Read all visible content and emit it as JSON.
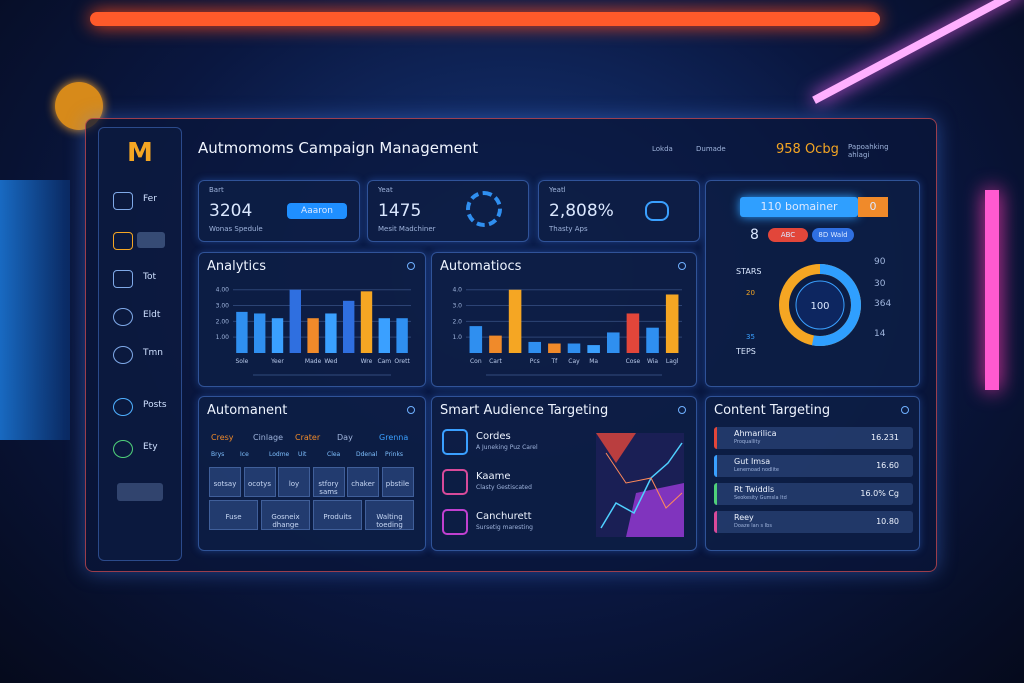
{
  "header": {
    "title": "Autmomoms Campaign Management",
    "user_items": [
      "Lokda",
      "Dumade"
    ],
    "counter": "958 Ocbg",
    "status": "Papoahking ahlagi"
  },
  "sidebar": {
    "logo": "M",
    "items": [
      "Fer",
      "Tot",
      "Eldt",
      "Tmn",
      "Posts",
      "Ety"
    ]
  },
  "stats": [
    {
      "label": "Bart",
      "value": "3204",
      "caption": "Wonas Spedule",
      "button": "Aaaron"
    },
    {
      "label": "Yeat",
      "value": "1475",
      "caption": "Mesit Madchiner"
    },
    {
      "label": "Yeatl",
      "value": "2,808%",
      "caption": "Thasty Aps"
    }
  ],
  "overview": {
    "banner": "110 bomainer",
    "badge": "0",
    "count": "8",
    "chips": [
      "ABC",
      "8D Wald"
    ],
    "center": "100",
    "left_labels": [
      "STARS",
      "TEPS"
    ],
    "left_numbers": [
      "20",
      "35"
    ],
    "right_numbers": [
      "90",
      "30",
      "364",
      "14"
    ]
  },
  "chart_data": [
    {
      "type": "bar",
      "title": "Analytics",
      "categories": [
        "Sole",
        null,
        "Yeer",
        null,
        "Made",
        "Wed",
        null,
        "Wre",
        "Cam",
        "Orett"
      ],
      "values": [
        2.6,
        2.5,
        2.2,
        4.0,
        2.2,
        2.5,
        3.3,
        3.9,
        2.2,
        2.2
      ],
      "colors": [
        "#2f8ff0",
        "#2f8ff0",
        "#3aa0ff",
        "#2f6fe0",
        "#f08a2a",
        "#3aa0ff",
        "#2f6fe0",
        "#f5a623",
        "#3aa0ff",
        "#2f8ff0"
      ],
      "ylim": [
        0,
        4.3
      ],
      "yticks": [
        {
          "value": 1,
          "label": "1.00"
        },
        {
          "value": 2,
          "label": "2.00"
        },
        {
          "value": 3,
          "label": "3.00"
        },
        {
          "value": 4,
          "label": "4.00"
        }
      ]
    },
    {
      "type": "bar",
      "title": "Automatiocs",
      "categories": [
        "Con",
        "Cart",
        null,
        "Pcs",
        "Tf",
        "Cay",
        "Ma",
        null,
        "Cose",
        "Wia",
        "Lagl"
      ],
      "values": [
        1.7,
        1.1,
        4.0,
        0.7,
        0.6,
        0.6,
        0.5,
        1.3,
        2.5,
        1.6,
        3.7
      ],
      "colors": [
        "#2f8ff0",
        "#f08a2a",
        "#f5a623",
        "#2f8ff0",
        "#f08a2a",
        "#2f8ff0",
        "#3aa0ff",
        "#2f8ff0",
        "#e2463a",
        "#2f8ff0",
        "#f5a623"
      ],
      "ylim": [
        0,
        4.3
      ],
      "yticks": [
        {
          "value": 1,
          "label": "1.0"
        },
        {
          "value": 2,
          "label": "2.0"
        },
        {
          "value": 3,
          "label": "3.0"
        },
        {
          "value": 4,
          "label": "4.0"
        }
      ]
    }
  ],
  "automanent": {
    "title": "Automanent",
    "tabs": [
      "Cresy",
      "Cinlage",
      "Crater",
      "Day",
      "Grenna"
    ],
    "columns": [
      "Brys",
      "Ice",
      "Lodme",
      "Uit",
      "Clea",
      "Ddenal",
      "Prinks"
    ],
    "cells": [
      "sotsay",
      "ocotys",
      "loy",
      "stfory sams",
      "chaker",
      "pbstile",
      "Fuse",
      "Gosneix dhange",
      "Produits",
      "Walting toeding"
    ]
  },
  "audience": {
    "title": "Smart Audience Targeting",
    "items": [
      {
        "name": "Cordes",
        "desc": "A Juneking Puz Carel"
      },
      {
        "name": "Kaame",
        "desc": "Clasty Gestiscated"
      },
      {
        "name": "Canchurett",
        "desc": "Sursetig maresting"
      }
    ]
  },
  "content": {
    "title": "Content Targeting",
    "rows": [
      {
        "name": "Ahmarilica",
        "desc": "Proquallity",
        "value": "16.231"
      },
      {
        "name": "Gut Imsa",
        "desc": "Lenemoad nodlite",
        "value": "16.60"
      },
      {
        "name": "Rt Twiddls",
        "desc": "Seokesity Gumsla Itd",
        "value": "16.0% Cg"
      },
      {
        "name": "Reey",
        "desc": "Doaze lan s Ibs",
        "value": "10.80"
      }
    ]
  }
}
